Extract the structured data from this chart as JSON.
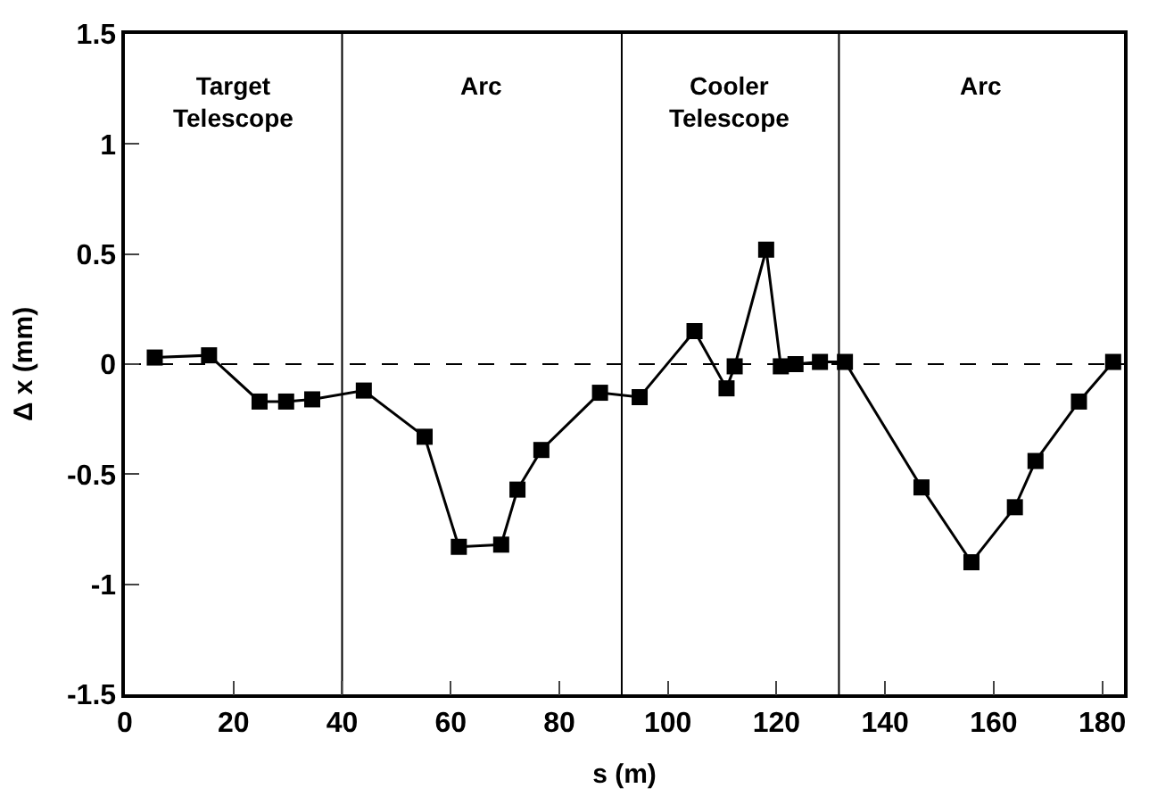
{
  "chart_data": {
    "type": "line",
    "xlabel": "s (m)",
    "ylabel": "Δ x (mm)",
    "x": [
      5.5,
      15.5,
      24.8,
      29.7,
      34.5,
      44,
      55.2,
      61.5,
      69.3,
      72.3,
      76.7,
      87.5,
      94.8,
      104.9,
      110.8,
      112.3,
      118.1,
      120.8,
      123.5,
      128,
      132.6,
      146.7,
      155.9,
      163.9,
      167.7,
      175.7,
      182
    ],
    "series": [
      {
        "color": "#000000",
        "values": [
          0.03,
          0.04,
          -0.17,
          -0.17,
          -0.16,
          -0.12,
          -0.33,
          -0.83,
          -0.82,
          -0.57,
          -0.39,
          -0.13,
          -0.15,
          0.15,
          -0.11,
          -0.01,
          0.52,
          -0.01,
          0.0,
          0.01,
          0.01,
          -0.56,
          -0.9,
          -0.65,
          -0.44,
          -0.17,
          0.01
        ]
      }
    ],
    "xlim": [
      0,
      184
    ],
    "ylim": [
      -1.5,
      1.5
    ],
    "xticks": [
      0,
      20,
      40,
      60,
      80,
      100,
      120,
      140,
      160,
      180
    ],
    "yticks": [
      -1.5,
      -1,
      -0.5,
      0,
      0.5,
      1,
      1.5
    ],
    "marker": "square",
    "line_style": "solid",
    "ref_lines": [
      {
        "axis": "y",
        "value": 0,
        "color": "#000000",
        "line_style": "dashed"
      },
      {
        "axis": "x",
        "value": 40,
        "color": "#000000",
        "line_style": "solid"
      },
      {
        "axis": "x",
        "value": 91.5,
        "color": "#000000",
        "line_style": "solid"
      },
      {
        "axis": "x",
        "value": 131.5,
        "color": "#000000",
        "line_style": "solid"
      }
    ],
    "annotations": [
      "Target\nTelescope",
      "Arc",
      "Cooler\nTelescope",
      "Arc"
    ]
  }
}
